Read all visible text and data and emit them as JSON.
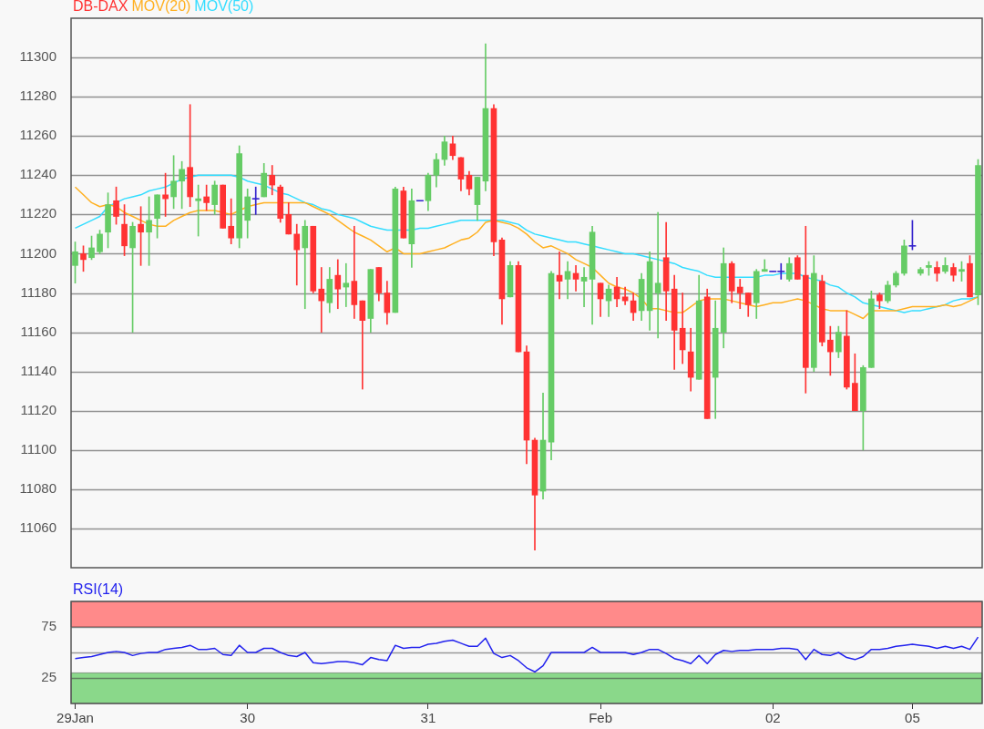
{
  "chart_data": [
    {
      "type": "candlestick",
      "categories": [
        null,
        null,
        null,
        null,
        null,
        null,
        null,
        null,
        null,
        null,
        null,
        null,
        null,
        null,
        null,
        null,
        null,
        null,
        null,
        null,
        null,
        null,
        null,
        null,
        null,
        null,
        null,
        null,
        null,
        null,
        null,
        null,
        null,
        null,
        null,
        null,
        null,
        null,
        null,
        null,
        null,
        null,
        null,
        null,
        null,
        null,
        null,
        null,
        null,
        null,
        null,
        null,
        null,
        null,
        null,
        null,
        null,
        null,
        null,
        null,
        null,
        null,
        null,
        null,
        null,
        null,
        null,
        null,
        null,
        null,
        null,
        null,
        null,
        null,
        null,
        null,
        null,
        null,
        null,
        null,
        null,
        null,
        null,
        null,
        null,
        null,
        null,
        null,
        null,
        null,
        null,
        null,
        null,
        null,
        null,
        null,
        null,
        null,
        null,
        null,
        null,
        null,
        null,
        null,
        null,
        null,
        null,
        null,
        null,
        null,
        null
      ],
      "series": [
        {
          "name": "DB-DAX",
          "type": "candlestick",
          "color": "#ff3333",
          "ohlc": [
            [
              11194,
              11206,
              11185,
              11201
            ],
            [
              11200,
              11204,
              11191,
              11197
            ],
            [
              11198,
              11209,
              11197,
              11203
            ],
            [
              11201,
              11212,
              11200,
              11210
            ],
            [
              11211,
              11231,
              11203,
              11225
            ],
            [
              11227,
              11234,
              11215,
              11219
            ],
            [
              11215,
              11225,
              11199,
              11204
            ],
            [
              11203,
              11216,
              11160,
              11214
            ],
            [
              11215,
              11224,
              11194,
              11211
            ],
            [
              11211,
              11229,
              11194,
              11217
            ],
            [
              11218,
              11230,
              11208,
              11230
            ],
            [
              11230,
              11241,
              11219,
              11228
            ],
            [
              11229,
              11250,
              11223,
              11237
            ],
            [
              11237,
              11247,
              11223,
              11243
            ],
            [
              11244,
              11276,
              11224,
              11229
            ],
            [
              11227,
              11235,
              11209,
              11228
            ],
            [
              11229,
              11235,
              11222,
              11226
            ],
            [
              11225,
              11237,
              11220,
              11235
            ],
            [
              11235,
              11235,
              11213,
              11213
            ],
            [
              11214,
              11228,
              11205,
              11208
            ],
            [
              11208,
              11255,
              11203,
              11251
            ],
            [
              11217,
              11233,
              11208,
              11229
            ],
            [
              11228,
              11234,
              11220,
              11228
            ],
            [
              11229,
              11246,
              11229,
              11241
            ],
            [
              11240,
              11245,
              11230,
              11235
            ],
            [
              11234,
              11235,
              11216,
              11218
            ],
            [
              11220,
              11226,
              11210,
              11210
            ],
            [
              11210,
              11215,
              11184,
              11202
            ],
            [
              11203,
              11217,
              11172,
              11214
            ],
            [
              11214,
              11214,
              11180,
              11181
            ],
            [
              11182,
              11193,
              11160,
              11176
            ],
            [
              11175,
              11193,
              11170,
              11187
            ],
            [
              11189,
              11197,
              11172,
              11182
            ],
            [
              11183,
              11195,
              11173,
              11185
            ],
            [
              11186,
              11214,
              11167,
              11174
            ],
            [
              11176,
              11176,
              11131,
              11166
            ],
            [
              11167,
              11192,
              11160,
              11192
            ],
            [
              11193,
              11193,
              11176,
              11180
            ],
            [
              11180,
              11186,
              11164,
              11170
            ],
            [
              11170,
              11234,
              11170,
              11233
            ],
            [
              11232,
              11234,
              11208,
              11208
            ],
            [
              11205,
              11233,
              11193,
              11227
            ],
            [
              11227,
              11227,
              11227,
              11227
            ],
            [
              11227,
              11241,
              11222,
              11240
            ],
            [
              11240,
              11251,
              11234,
              11248
            ],
            [
              11248,
              11260,
              11245,
              11257
            ],
            [
              11256,
              11260,
              11248,
              11250
            ],
            [
              11249,
              11249,
              11232,
              11238
            ],
            [
              11240,
              11242,
              11230,
              11233
            ],
            [
              11225,
              11239,
              11217,
              11239
            ],
            [
              11237,
              11307,
              11232,
              11274
            ],
            [
              11274,
              11276,
              11199,
              11206
            ],
            [
              11207,
              11208,
              11164,
              11177
            ],
            [
              11178,
              11196,
              11178,
              11194
            ],
            [
              11194,
              11196,
              11150,
              11150
            ],
            [
              11150,
              11153,
              11093,
              11105
            ],
            [
              11105,
              11106,
              11049,
              11077
            ],
            [
              11079,
              11129,
              11075,
              11105
            ],
            [
              11104,
              11191,
              11095,
              11190
            ],
            [
              11189,
              11201,
              11177,
              11186
            ],
            [
              11187,
              11196,
              11177,
              11191
            ],
            [
              11190,
              11194,
              11181,
              11187
            ],
            [
              11186,
              11193,
              11173,
              11188
            ],
            [
              11187,
              11214,
              11164,
              11211
            ],
            [
              11185,
              11185,
              11168,
              11177
            ],
            [
              11176,
              11184,
              11168,
              11182
            ],
            [
              11183,
              11188,
              11173,
              11177
            ],
            [
              11178,
              11183,
              11174,
              11176
            ],
            [
              11176,
              11180,
              11166,
              11170
            ],
            [
              11171,
              11190,
              11166,
              11187
            ],
            [
              11171,
              11201,
              11161,
              11196
            ],
            [
              11180,
              11221,
              11157,
              11185
            ],
            [
              11198,
              11216,
              11166,
              11181
            ],
            [
              11182,
              11189,
              11141,
              11161
            ],
            [
              11162,
              11180,
              11144,
              11151
            ],
            [
              11150,
              11162,
              11130,
              11137
            ],
            [
              11136,
              11189,
              11136,
              11176
            ],
            [
              11178,
              11182,
              11116,
              11116
            ],
            [
              11137,
              11176,
              11116,
              11162
            ],
            [
              11160,
              11203,
              11152,
              11195
            ],
            [
              11195,
              11196,
              11175,
              11181
            ],
            [
              11183,
              11187,
              11172,
              11180
            ],
            [
              11180,
              11180,
              11168,
              11174
            ],
            [
              11175,
              11192,
              11167,
              11191
            ],
            [
              11191,
              11197,
              11191,
              11192
            ],
            [
              11191,
              11191,
              11191,
              11191
            ],
            [
              11191,
              11195,
              11187,
              11191
            ],
            [
              11187,
              11198,
              11186,
              11195
            ],
            [
              11198,
              11199,
              11187,
              11187
            ],
            [
              11189,
              11214,
              11129,
              11142
            ],
            [
              11142,
              11199,
              11140,
              11190
            ],
            [
              11186,
              11189,
              11153,
              11155
            ],
            [
              11156,
              11163,
              11138,
              11150
            ],
            [
              11150,
              11163,
              11147,
              11160
            ],
            [
              11158,
              11171,
              11131,
              11132
            ],
            [
              11134,
              11149,
              11120,
              11120
            ],
            [
              11120,
              11143,
              11100,
              11142
            ],
            [
              11142,
              11181,
              11142,
              11177
            ],
            [
              11179,
              11180,
              11172,
              11176
            ],
            [
              11176,
              11186,
              11175,
              11184
            ],
            [
              11184,
              11191,
              11183,
              11190
            ],
            [
              11190,
              11207,
              11189,
              11204
            ],
            [
              11204,
              11217,
              11202,
              11204
            ],
            [
              11190,
              11193,
              11189,
              11192
            ],
            [
              11193,
              11196,
              11189,
              11194
            ],
            [
              11193,
              11196,
              11186,
              11190
            ],
            [
              11191,
              11198,
              11190,
              11194
            ],
            [
              11193,
              11195,
              11186,
              11189
            ],
            [
              11191,
              11196,
              11186,
              11192
            ],
            [
              11195,
              11199,
              11178,
              11178
            ],
            [
              11179,
              11248,
              11174,
              11245
            ]
          ],
          "colors": [
            "#66cc66",
            "#ff3333",
            "#66cc66",
            "#66cc66",
            "#66cc66",
            "#ff3333",
            "#ff3333",
            "#66cc66",
            "#ff3333",
            "#66cc66",
            "#66cc66",
            "#ff3333",
            "#66cc66",
            "#66cc66",
            "#ff3333",
            "#66cc66",
            "#ff3333",
            "#66cc66",
            "#ff3333",
            "#ff3333",
            "#66cc66",
            "#66cc66",
            "#3322cc",
            "#66cc66",
            "#ff3333",
            "#ff3333",
            "#ff3333",
            "#ff3333",
            "#66cc66",
            "#ff3333",
            "#ff3333",
            "#66cc66",
            "#ff3333",
            "#66cc66",
            "#ff3333",
            "#ff3333",
            "#66cc66",
            "#ff3333",
            "#ff3333",
            "#66cc66",
            "#ff3333",
            "#66cc66",
            "#3322cc",
            "#66cc66",
            "#66cc66",
            "#66cc66",
            "#ff3333",
            "#ff3333",
            "#ff3333",
            "#66cc66",
            "#66cc66",
            "#ff3333",
            "#ff3333",
            "#66cc66",
            "#ff3333",
            "#ff3333",
            "#ff3333",
            "#66cc66",
            "#66cc66",
            "#ff3333",
            "#66cc66",
            "#ff3333",
            "#66cc66",
            "#66cc66",
            "#ff3333",
            "#66cc66",
            "#ff3333",
            "#ff3333",
            "#ff3333",
            "#66cc66",
            "#66cc66",
            "#66cc66",
            "#ff3333",
            "#ff3333",
            "#ff3333",
            "#ff3333",
            "#66cc66",
            "#ff3333",
            "#66cc66",
            "#66cc66",
            "#ff3333",
            "#ff3333",
            "#ff3333",
            "#66cc66",
            "#66cc66",
            "#3322cc",
            "#3322cc",
            "#66cc66",
            "#ff3333",
            "#ff3333",
            "#66cc66",
            "#ff3333",
            "#ff3333",
            "#66cc66",
            "#ff3333",
            "#ff3333",
            "#66cc66",
            "#66cc66",
            "#ff3333",
            "#66cc66",
            "#66cc66",
            "#66cc66",
            "#3322cc",
            "#66cc66",
            "#66cc66",
            "#ff3333",
            "#66cc66",
            "#ff3333",
            "#66cc66",
            "#ff3333",
            "#66cc66"
          ]
        },
        {
          "name": "MOV(20)",
          "type": "line",
          "color": "#ffb020",
          "values": [
            11234,
            11230,
            11226,
            11224,
            11225,
            11224,
            11221,
            11219,
            11217,
            11215,
            11214,
            11214,
            11217,
            11219,
            11221,
            11222,
            11222,
            11222,
            11221,
            11220,
            11222,
            11224,
            11225,
            11226,
            11226,
            11226,
            11226,
            11226,
            11226,
            11224,
            11222,
            11220,
            11217,
            11214,
            11211,
            11209,
            11207,
            11204,
            11201,
            11203,
            11200,
            11200,
            11200,
            11201,
            11202,
            11203,
            11205,
            11207,
            11208,
            11211,
            11216,
            11217,
            11216,
            11215,
            11213,
            11210,
            11206,
            11203,
            11204,
            11202,
            11200,
            11197,
            11195,
            11193,
            11189,
            11185,
            11183,
            11182,
            11180,
            11177,
            11172,
            11172,
            11171,
            11170,
            11170,
            11173,
            11176,
            11177,
            11177,
            11177,
            11176,
            11175,
            11174,
            11173,
            11174,
            11175,
            11175,
            11176,
            11177,
            11176,
            11174,
            11172,
            11171,
            11171,
            11171,
            11169,
            11167,
            11171,
            11171,
            11171,
            11171,
            11172,
            11173,
            11173,
            11173,
            11173,
            11174,
            11173,
            11174,
            11176,
            11178
          ]
        },
        {
          "name": "MOV(50)",
          "type": "line",
          "color": "#33ddff",
          "values": [
            11213,
            11215,
            11217,
            11219,
            11224,
            11226,
            11228,
            11229,
            11230,
            11232,
            11233,
            11234,
            11236,
            11238,
            11239,
            11240,
            11240,
            11240,
            11240,
            11240,
            11239,
            11237,
            11236,
            11235,
            11233,
            11231,
            11230,
            11228,
            11226,
            11225,
            11223,
            11222,
            11220,
            11219,
            11218,
            11216,
            11214,
            11213,
            11212,
            11212,
            11212,
            11212,
            11213,
            11213,
            11214,
            11215,
            11216,
            11217,
            11217,
            11217,
            11217,
            11217,
            11217,
            11216,
            11215,
            11212,
            11210,
            11209,
            11208,
            11207,
            11206,
            11206,
            11205,
            11204,
            11203,
            11202,
            11201,
            11200,
            11200,
            11199,
            11198,
            11197,
            11196,
            11195,
            11193,
            11192,
            11191,
            11189,
            11188,
            11188,
            11188,
            11188,
            11188,
            11188,
            11189,
            11189,
            11190,
            11190,
            11190,
            11188,
            11187,
            11186,
            11184,
            11183,
            11180,
            11178,
            11175,
            11174,
            11173,
            11172,
            11171,
            11170,
            11171,
            11171,
            11172,
            11173,
            11174,
            11176,
            11177,
            11177,
            11178
          ]
        }
      ],
      "ylim": [
        11040,
        11320
      ],
      "yticks": [
        11060,
        11080,
        11100,
        11120,
        11140,
        11160,
        11180,
        11200,
        11220,
        11240,
        11260,
        11280,
        11300
      ],
      "grid": "y",
      "legend": "top left",
      "tick_labels": "y"
    },
    {
      "type": "line",
      "categories": [
        "29Jan",
        null,
        null,
        null,
        null,
        null,
        null,
        null,
        null,
        null,
        null,
        null,
        null,
        null,
        null,
        null,
        null,
        null,
        null,
        null,
        null,
        "30",
        null,
        null,
        null,
        null,
        null,
        null,
        null,
        null,
        null,
        null,
        null,
        null,
        null,
        null,
        null,
        null,
        null,
        null,
        null,
        null,
        null,
        "31",
        null,
        null,
        null,
        null,
        null,
        null,
        null,
        null,
        null,
        null,
        null,
        null,
        null,
        null,
        null,
        null,
        null,
        null,
        null,
        null,
        "Feb",
        null,
        null,
        null,
        null,
        null,
        null,
        null,
        null,
        null,
        null,
        null,
        null,
        null,
        null,
        null,
        null,
        null,
        null,
        null,
        null,
        "02",
        null,
        null,
        null,
        null,
        null,
        null,
        null,
        null,
        null,
        null,
        null,
        null,
        null,
        null,
        null,
        null,
        "05",
        null,
        null,
        null,
        null,
        null,
        null,
        null,
        null
      ],
      "series": [
        {
          "name": "RSI(14)",
          "type": "line",
          "color": "#2222ee",
          "values": [
            44,
            45,
            46,
            48,
            50,
            51,
            50,
            47,
            49,
            50,
            50,
            53,
            54,
            55,
            57,
            53,
            53,
            54,
            48,
            47,
            57,
            50,
            50,
            54,
            54,
            50,
            47,
            46,
            50,
            40,
            39,
            40,
            41,
            41,
            40,
            38,
            45,
            43,
            42,
            57,
            54,
            55,
            55,
            58,
            59,
            61,
            62,
            59,
            56,
            56,
            64,
            49,
            45,
            47,
            42,
            35,
            31,
            37,
            50,
            50,
            50,
            50,
            50,
            55,
            50,
            50,
            50,
            50,
            48,
            50,
            53,
            53,
            49,
            44,
            42,
            39,
            47,
            39,
            48,
            52,
            51,
            52,
            52,
            53,
            53,
            53,
            54,
            54,
            53,
            43,
            53,
            48,
            47,
            50,
            45,
            43,
            46,
            53,
            53,
            54,
            56,
            57,
            58,
            57,
            56,
            54,
            56,
            54,
            56,
            53,
            65
          ]
        }
      ],
      "ylim": [
        0,
        100
      ],
      "yticks": [
        25,
        75
      ],
      "bands": [
        {
          "axis": "y",
          "from": 75,
          "to": 100,
          "color": "#ff8a8a"
        },
        {
          "axis": "y",
          "from": 0,
          "to": 30,
          "color": "#8ad88a"
        }
      ],
      "ref_lines": [
        {
          "axis": "y",
          "value": 50,
          "color": "#999999"
        }
      ],
      "grid": "y",
      "legend": "top left"
    }
  ]
}
